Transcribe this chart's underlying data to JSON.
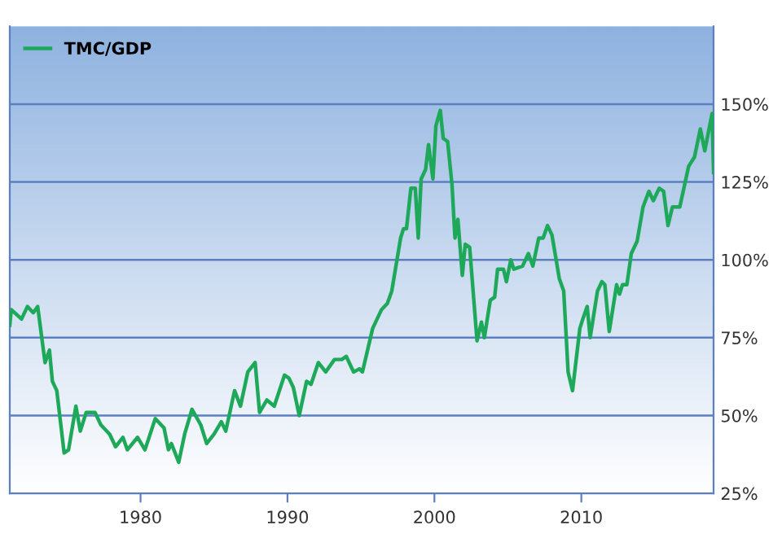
{
  "chart_data": {
    "type": "line",
    "x": [
      1971.1,
      1971.2,
      1971.9,
      1972.3,
      1972.7,
      1973.0,
      1973.5,
      1973.8,
      1974.0,
      1974.3,
      1974.8,
      1975.1,
      1975.6,
      1975.9,
      1976.3,
      1976.9,
      1977.3,
      1977.9,
      1978.3,
      1978.8,
      1979.1,
      1979.8,
      1980.3,
      1981.0,
      1981.6,
      1981.9,
      1982.1,
      1982.6,
      1983.0,
      1983.5,
      1984.1,
      1984.5,
      1985.0,
      1985.5,
      1985.8,
      1986.4,
      1986.8,
      1987.3,
      1987.8,
      1988.1,
      1988.6,
      1989.1,
      1989.8,
      1990.1,
      1990.4,
      1990.8,
      1991.3,
      1991.6,
      1992.1,
      1992.6,
      1993.2,
      1993.7,
      1994.0,
      1994.5,
      1994.9,
      1995.1,
      1995.8,
      1996.4,
      1996.8,
      1997.1,
      1997.7,
      1997.9,
      1998.1,
      1998.4,
      1998.7,
      1998.9,
      1999.1,
      1999.4,
      1999.6,
      1999.9,
      2000.1,
      2000.4,
      2000.6,
      2000.9,
      2001.2,
      2001.4,
      2001.6,
      2001.9,
      2002.1,
      2002.4,
      2002.9,
      2003.2,
      2003.4,
      2003.8,
      2004.1,
      2004.3,
      2004.7,
      2004.9,
      2005.2,
      2005.4,
      2006.0,
      2006.4,
      2006.7,
      2007.1,
      2007.4,
      2007.7,
      2008.0,
      2008.5,
      2008.8,
      2009.1,
      2009.4,
      2009.9,
      2010.1,
      2010.4,
      2010.6,
      2011.1,
      2011.4,
      2011.6,
      2011.9,
      2012.4,
      2012.6,
      2012.8,
      2013.1,
      2013.4,
      2013.8,
      2014.2,
      2014.6,
      2014.9,
      2015.3,
      2015.6,
      2015.9,
      2016.2,
      2016.7,
      2017.3,
      2017.7,
      2018.1,
      2018.4,
      2018.9,
      2019.0
    ],
    "series": [
      {
        "name": "TMC/GDP",
        "color": "#1ea85a",
        "values": [
          79,
          84,
          81,
          85,
          83,
          85,
          67,
          71,
          61,
          58,
          38,
          39,
          53,
          45,
          51,
          51,
          47,
          44,
          40,
          43,
          39,
          43,
          39,
          49,
          46,
          39,
          41,
          35,
          44,
          52,
          47,
          41,
          44,
          48,
          45,
          58,
          53,
          64,
          67,
          51,
          55,
          53,
          63,
          62,
          59,
          50,
          61,
          60,
          67,
          64,
          68,
          68,
          69,
          64,
          65,
          64,
          78,
          84,
          86,
          90,
          107,
          110,
          110,
          123,
          123,
          107,
          126,
          129,
          137,
          126,
          143,
          148,
          139,
          138,
          124,
          107,
          113,
          95,
          105,
          104,
          74,
          80,
          75,
          87,
          88,
          97,
          97,
          93,
          100,
          97,
          98,
          102,
          98,
          107,
          107,
          111,
          108,
          94,
          90,
          64,
          58,
          78,
          81,
          85,
          75,
          90,
          93,
          92,
          77,
          92,
          89,
          92,
          92,
          102,
          106,
          117,
          122,
          119,
          123,
          122,
          111,
          117,
          117,
          130,
          133,
          142,
          135,
          147,
          128
        ]
      }
    ],
    "xlim": [
      1971.1,
      2019.0
    ],
    "ylim": [
      25,
      175
    ],
    "xticks": [
      1980,
      1990,
      2000,
      2010
    ],
    "yticks": [
      {
        "value": 25,
        "label": "25%"
      },
      {
        "value": 50,
        "label": "50%"
      },
      {
        "value": 75,
        "label": "75%"
      },
      {
        "value": 100,
        "label": "100%"
      },
      {
        "value": 125,
        "label": "125%"
      },
      {
        "value": 150,
        "label": "150%"
      }
    ],
    "grid": "y",
    "legend": "top left",
    "marker": "none",
    "line_style": "solid"
  }
}
